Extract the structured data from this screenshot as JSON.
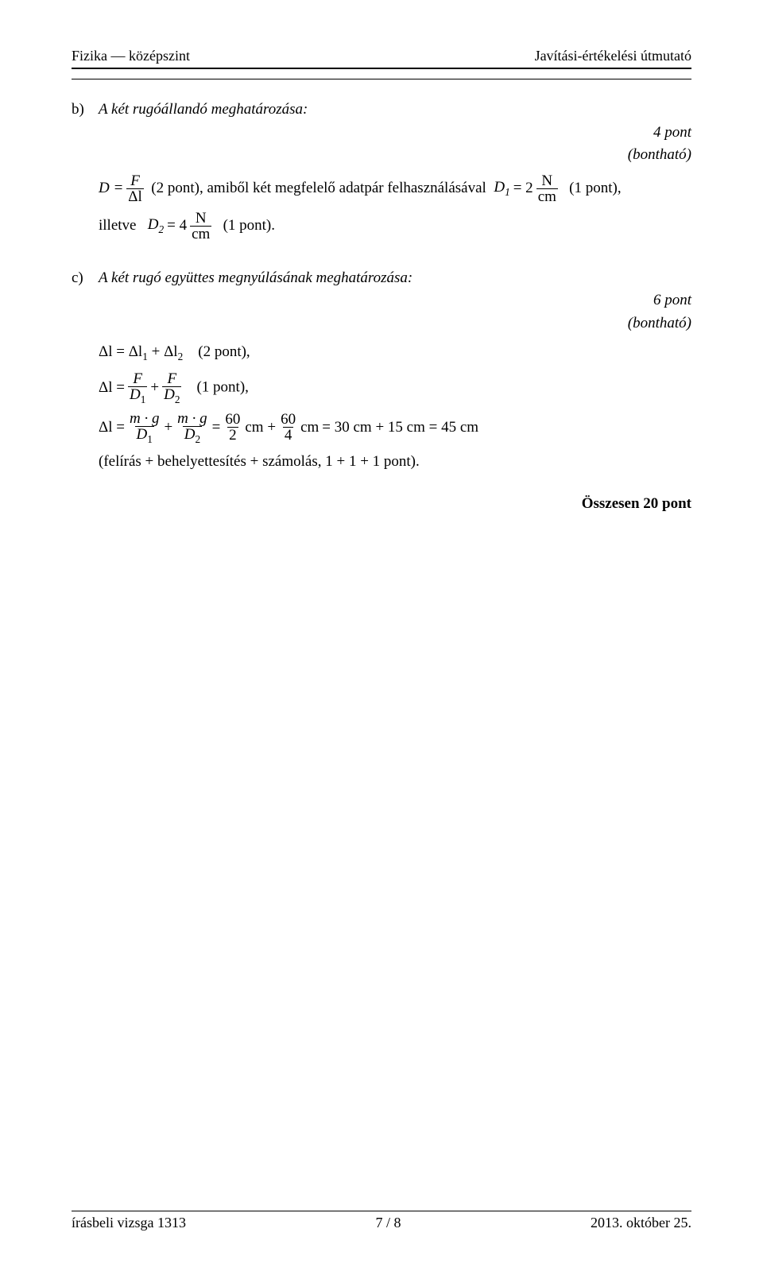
{
  "header": {
    "left": "Fizika — középszint",
    "right": "Javítási-értékelési útmutató"
  },
  "partB": {
    "label": "b)",
    "title": "A két rugóállandó meghatározása:",
    "points": "4 pont",
    "breakable": "(bontható)",
    "eq_lead": "(2 pont), amiből két megfelelő adatpár felhasználásával",
    "eq_d1_tail": "(1 pont),",
    "illetve": "illetve",
    "eq_d2_tail": "(1 pont).",
    "D_eq": "D =",
    "F": "F",
    "dl": "Δl",
    "D1": "D",
    "D1_sub": "1",
    "eq_sym": "= 2",
    "N": "N",
    "cm": "cm",
    "D2": "D",
    "D2_sub": "2",
    "eq4": "= 4"
  },
  "partC": {
    "label": "c)",
    "title": "A két rugó együttes megnyúlásának meghatározása:",
    "points": "6 pont",
    "breakable": "(bontható)",
    "eq1_lhs": "Δl = Δl",
    "eq1_s1": "1",
    "eq1_plus": " + Δl",
    "eq1_s2": "2",
    "eq1_note": "(2 pont),",
    "eq2_lhs": "Δl =",
    "F": "F",
    "D1": "D",
    "D1s": "1",
    "plus": "+",
    "D2": "D",
    "D2s": "2",
    "eq2_note": "(1 pont),",
    "eq3_lhs": "Δl =",
    "mg": "m · g",
    "eq3_eq": "=",
    "sixty": "60",
    "two": "2",
    "four": "4",
    "cm": "cm",
    "cm_plus": "cm +",
    "r1": "= 30 cm + 15 cm = 45 cm",
    "note3": "(felírás + behelyettesítés + számolás, 1 + 1 + 1 pont)."
  },
  "total": "Összesen 20 pont",
  "footer": {
    "left": "írásbeli vizsga 1313",
    "center": "7 / 8",
    "right": "2013. október 25."
  }
}
